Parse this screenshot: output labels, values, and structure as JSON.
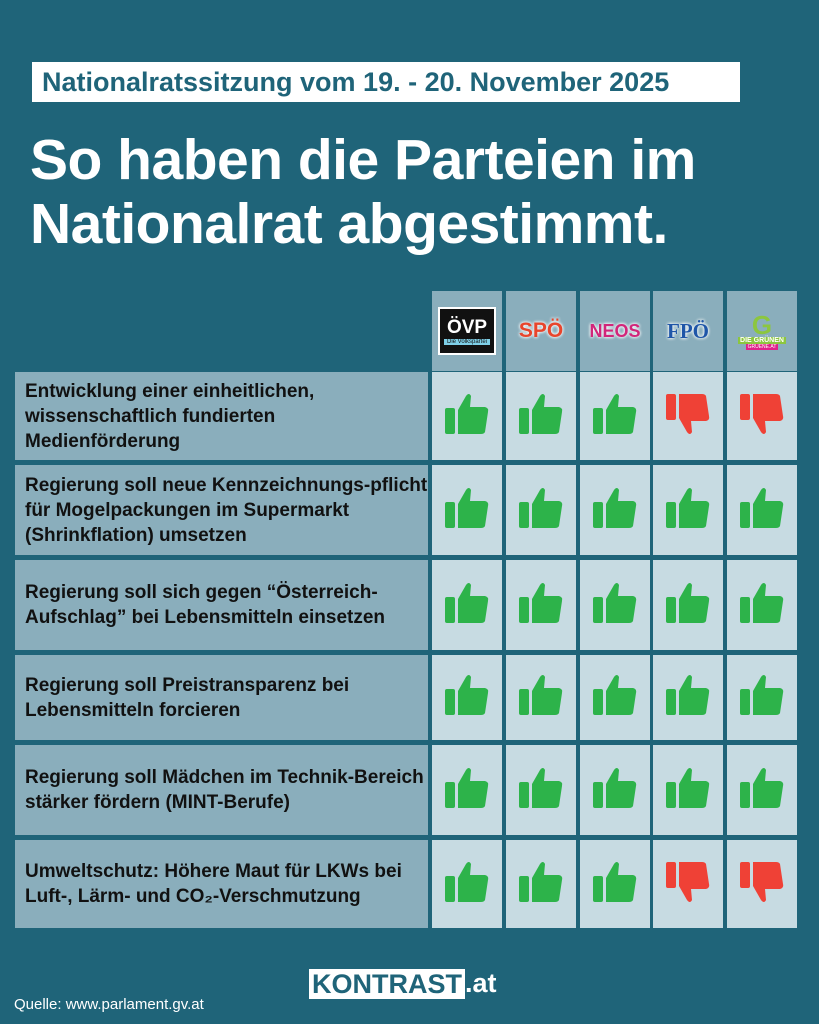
{
  "header": {
    "date": "Nationalratssitzung vom 19. - 20. November 2025",
    "title_line1": "So haben die Parteien im",
    "title_line2": "Nationalrat abgestimmt."
  },
  "parties": [
    {
      "name": "ÖVP",
      "sub": "Die Volkspartei"
    },
    {
      "name": "SPÖ",
      "color": "#e8452c"
    },
    {
      "name": "NEOS",
      "color": "#d1267a"
    },
    {
      "name": "FPÖ",
      "color": "#1f56a8"
    },
    {
      "name": "DIE GRÜNEN",
      "sub": "GRUENE.AT",
      "color": "#8cc63f"
    }
  ],
  "colors": {
    "yes": "#2db34a",
    "no": "#ef4136",
    "background": "#1f6479"
  },
  "rows": [
    {
      "label": "Entwicklung einer einheitlichen, wissenschaftlich fundierten Medienförderung",
      "votes": [
        "yes",
        "yes",
        "yes",
        "no",
        "no"
      ]
    },
    {
      "label": "Regierung soll neue Kennzeichnungs-pflicht für Mogelpackungen im Supermarkt (Shrinkflation) umsetzen",
      "votes": [
        "yes",
        "yes",
        "yes",
        "yes",
        "yes"
      ]
    },
    {
      "label": "Regierung soll sich gegen “Österreich-Aufschlag” bei Lebensmitteln einsetzen",
      "votes": [
        "yes",
        "yes",
        "yes",
        "yes",
        "yes"
      ]
    },
    {
      "label": "Regierung soll Preistransparenz bei Lebensmitteln forcieren",
      "votes": [
        "yes",
        "yes",
        "yes",
        "yes",
        "yes"
      ]
    },
    {
      "label": "Regierung soll Mädchen im Technik-Bereich stärker fördern (MINT-Berufe)",
      "votes": [
        "yes",
        "yes",
        "yes",
        "yes",
        "yes"
      ]
    },
    {
      "label": "Umweltschutz: Höhere Maut für LKWs bei Luft-, Lärm- und CO₂-Verschmutzung",
      "votes": [
        "yes",
        "yes",
        "yes",
        "no",
        "no"
      ]
    }
  ],
  "footer": {
    "source": "Quelle: www.parlament.gv.at",
    "brand_box": "KONTRAST",
    "brand_suffix": ".at"
  }
}
